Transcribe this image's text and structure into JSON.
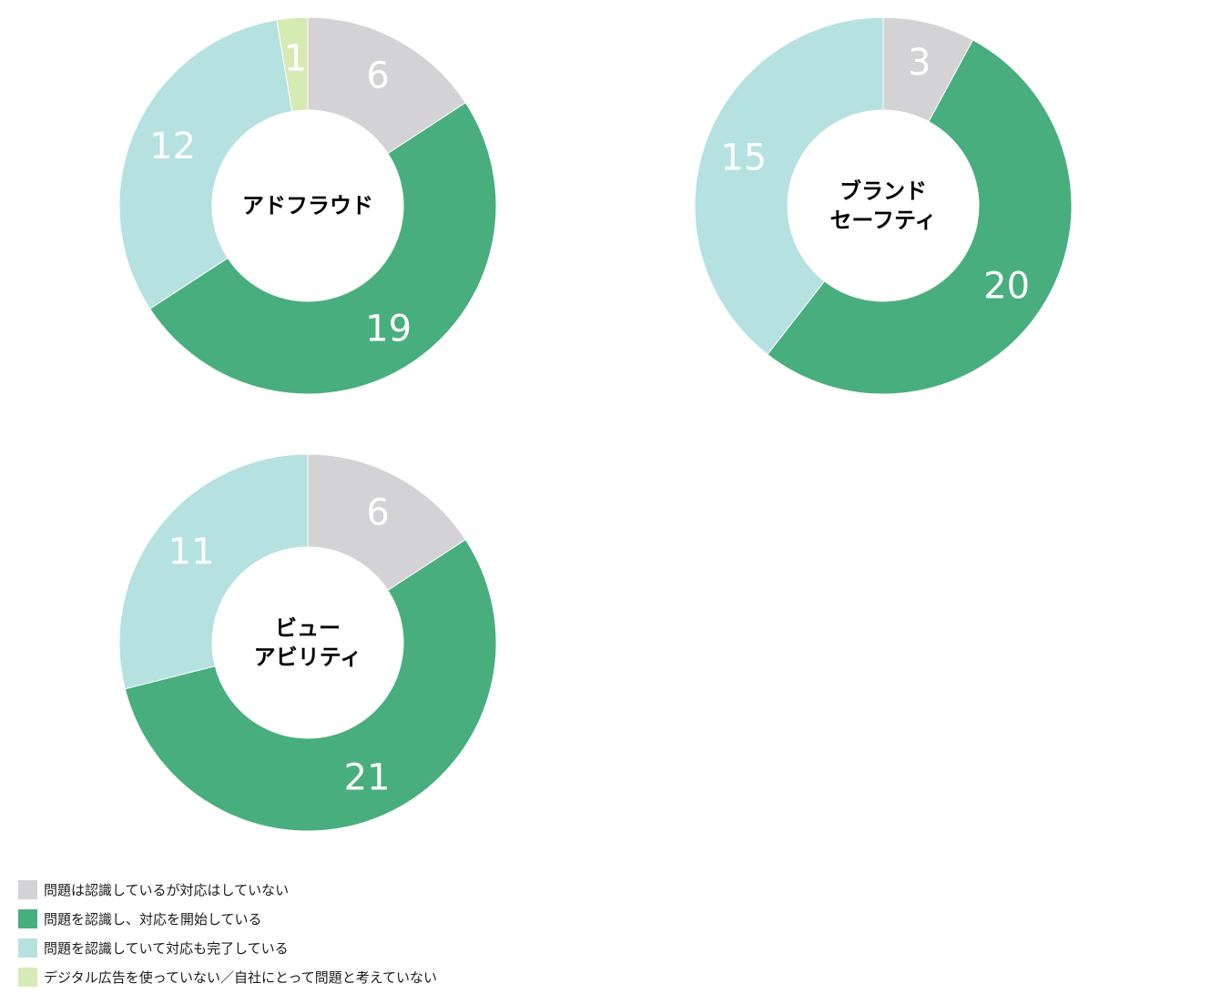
{
  "colors": {
    "problem_recognized_no_action": "#d3d3d5",
    "recognized_action_started": "#48ae7e",
    "recognized_action_completed": "#b5e1e0",
    "not_using_or_not_problem": "#d6eab4"
  },
  "legend": [
    {
      "label": "問題は認識しているが対応はしていない",
      "color": "#d3d3d5"
    },
    {
      "label": "問題を認識し、対応を開始している",
      "color": "#48ae7e"
    },
    {
      "label": "問題を認識していて対応も完了している",
      "color": "#b5e1e0"
    },
    {
      "label": "デジタル広告を使っていない／自社にとって問題と考えていない",
      "color": "#d6eab4"
    }
  ],
  "chart_data": [
    {
      "type": "pie",
      "title": "アドフラウド",
      "title_lines": [
        "アドフラウド"
      ],
      "categories": [
        "問題は認識しているが対応はしていない",
        "問題を認識し、対応を開始している",
        "問題を認識していて対応も完了している",
        "デジタル広告を使っていない／自社にとって問題と考えていない"
      ],
      "values": [
        6,
        19,
        12,
        1
      ],
      "colors": [
        "#d3d3d5",
        "#48ae7e",
        "#b5e1e0",
        "#d6eab4"
      ],
      "data_labels": [
        "6",
        "19",
        "12",
        "1"
      ]
    },
    {
      "type": "pie",
      "title": "ブランドセーフティ",
      "title_lines": [
        "ブランド",
        "セーフティ"
      ],
      "categories": [
        "問題は認識しているが対応はしていない",
        "問題を認識し、対応を開始している",
        "問題を認識していて対応も完了している"
      ],
      "values": [
        3,
        20,
        15
      ],
      "colors": [
        "#d3d3d5",
        "#48ae7e",
        "#b5e1e0"
      ],
      "data_labels": [
        "3",
        "20",
        "15"
      ]
    },
    {
      "type": "pie",
      "title": "ビューアビリティ",
      "title_lines": [
        "ビュー",
        "アビリティ"
      ],
      "categories": [
        "問題は認識しているが対応はしていない",
        "問題を認識し、対応を開始している",
        "問題を認識していて対応も完了している"
      ],
      "values": [
        6,
        21,
        11
      ],
      "colors": [
        "#d3d3d5",
        "#48ae7e",
        "#b5e1e0"
      ],
      "data_labels": [
        "6",
        "21",
        "11"
      ]
    }
  ]
}
